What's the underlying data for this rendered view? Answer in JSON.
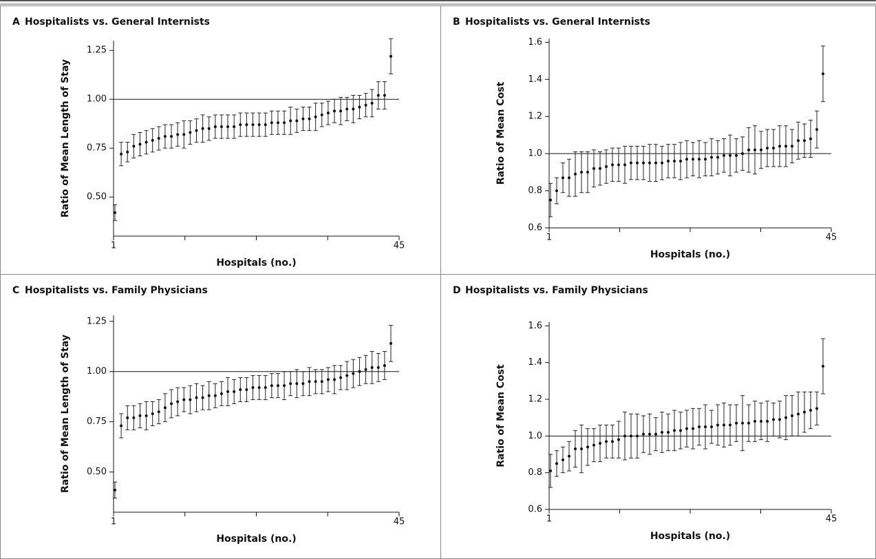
{
  "chart_data": [
    {
      "type": "errorbar",
      "label": "A",
      "title": "Hospitalists vs. General Internists",
      "xlabel": "Hospitals (no.)",
      "ylabel": "Ratio of Mean Length of Stay",
      "xlim": [
        1,
        45
      ],
      "xticks": [
        1,
        45
      ],
      "xminor_ticks": [
        12,
        23,
        34
      ],
      "ylim": [
        0.3,
        1.3
      ],
      "yticks": [
        {
          "value": 0.5,
          "label": "0.50"
        },
        {
          "value": 0.75,
          "label": "0.75"
        },
        {
          "value": 1.0,
          "label": "1.00"
        },
        {
          "value": 1.25,
          "label": "1.25"
        }
      ],
      "refline": 1,
      "values": [
        0.42,
        0.72,
        0.73,
        0.76,
        0.77,
        0.78,
        0.79,
        0.8,
        0.81,
        0.81,
        0.82,
        0.82,
        0.83,
        0.84,
        0.85,
        0.85,
        0.86,
        0.86,
        0.86,
        0.86,
        0.87,
        0.87,
        0.87,
        0.87,
        0.87,
        0.88,
        0.88,
        0.88,
        0.89,
        0.89,
        0.9,
        0.9,
        0.91,
        0.92,
        0.93,
        0.94,
        0.94,
        0.95,
        0.95,
        0.96,
        0.97,
        0.98,
        1.02,
        1.02,
        1.22
      ],
      "errors": [
        0.04,
        0.06,
        0.05,
        0.06,
        0.06,
        0.06,
        0.06,
        0.06,
        0.06,
        0.06,
        0.06,
        0.07,
        0.06,
        0.06,
        0.07,
        0.06,
        0.06,
        0.06,
        0.06,
        0.06,
        0.06,
        0.06,
        0.06,
        0.06,
        0.06,
        0.06,
        0.06,
        0.06,
        0.07,
        0.06,
        0.06,
        0.06,
        0.07,
        0.06,
        0.06,
        0.06,
        0.07,
        0.06,
        0.07,
        0.06,
        0.06,
        0.07,
        0.07,
        0.07,
        0.09
      ]
    },
    {
      "type": "errorbar",
      "label": "B",
      "title": "Hospitalists vs. General Internists",
      "xlabel": "Hospitals (no.)",
      "ylabel": "Ratio of Mean Cost",
      "xlim": [
        1,
        45
      ],
      "xticks": [
        1,
        45
      ],
      "xminor_ticks": [
        12,
        23,
        34
      ],
      "ylim": [
        0.6,
        1.62
      ],
      "yticks": [
        0.6,
        0.8,
        {
          "value": 1.0,
          "label": "1.0"
        },
        1.2,
        1.4,
        1.6
      ],
      "refline": 1,
      "values": [
        0.75,
        0.8,
        0.87,
        0.87,
        0.89,
        0.9,
        0.9,
        0.92,
        0.92,
        0.93,
        0.94,
        0.94,
        0.94,
        0.95,
        0.95,
        0.95,
        0.95,
        0.95,
        0.95,
        0.96,
        0.96,
        0.96,
        0.97,
        0.97,
        0.97,
        0.97,
        0.98,
        0.98,
        0.99,
        0.99,
        0.99,
        1.0,
        1.02,
        1.02,
        1.02,
        1.03,
        1.03,
        1.04,
        1.04,
        1.04,
        1.07,
        1.07,
        1.08,
        1.13,
        1.43
      ],
      "errors": [
        0.09,
        0.07,
        0.08,
        0.1,
        0.12,
        0.11,
        0.11,
        0.1,
        0.09,
        0.09,
        0.09,
        0.09,
        0.1,
        0.09,
        0.09,
        0.09,
        0.1,
        0.1,
        0.09,
        0.09,
        0.09,
        0.1,
        0.1,
        0.09,
        0.1,
        0.09,
        0.1,
        0.09,
        0.09,
        0.11,
        0.09,
        0.09,
        0.12,
        0.13,
        0.1,
        0.1,
        0.1,
        0.11,
        0.11,
        0.09,
        0.1,
        0.09,
        0.1,
        0.1,
        0.15
      ]
    },
    {
      "type": "errorbar",
      "label": "C",
      "title": "Hospitalists vs. Family Physicians",
      "xlabel": "Hospitals (no.)",
      "ylabel": "Ratio of Mean Length of Stay",
      "xlim": [
        1,
        45
      ],
      "xticks": [
        1,
        45
      ],
      "xminor_ticks": [
        12,
        23,
        34
      ],
      "ylim": [
        0.3,
        1.28
      ],
      "yticks": [
        {
          "value": 0.5,
          "label": "0.50"
        },
        {
          "value": 0.75,
          "label": "0.75"
        },
        {
          "value": 1.0,
          "label": "1.00"
        },
        {
          "value": 1.25,
          "label": "1.25"
        }
      ],
      "refline": 1,
      "values": [
        0.41,
        0.73,
        0.77,
        0.77,
        0.78,
        0.78,
        0.79,
        0.8,
        0.82,
        0.84,
        0.85,
        0.86,
        0.86,
        0.87,
        0.87,
        0.88,
        0.88,
        0.89,
        0.9,
        0.9,
        0.91,
        0.91,
        0.92,
        0.92,
        0.92,
        0.93,
        0.93,
        0.93,
        0.94,
        0.94,
        0.94,
        0.95,
        0.95,
        0.95,
        0.96,
        0.96,
        0.97,
        0.98,
        0.99,
        1.0,
        1.01,
        1.02,
        1.02,
        1.03,
        1.14
      ],
      "errors": [
        0.04,
        0.06,
        0.06,
        0.06,
        0.06,
        0.07,
        0.06,
        0.06,
        0.07,
        0.07,
        0.07,
        0.06,
        0.07,
        0.07,
        0.06,
        0.07,
        0.06,
        0.06,
        0.07,
        0.06,
        0.06,
        0.06,
        0.06,
        0.06,
        0.06,
        0.06,
        0.06,
        0.07,
        0.06,
        0.07,
        0.06,
        0.07,
        0.06,
        0.06,
        0.06,
        0.07,
        0.06,
        0.07,
        0.07,
        0.07,
        0.07,
        0.08,
        0.07,
        0.07,
        0.09
      ]
    },
    {
      "type": "errorbar",
      "label": "D",
      "title": "Hospitalists vs. Family Physicians",
      "xlabel": "Hospitals (no.)",
      "ylabel": "Ratio of Mean Cost",
      "xlim": [
        1,
        45
      ],
      "xticks": [
        1,
        45
      ],
      "xminor_ticks": [
        12,
        23,
        34
      ],
      "ylim": [
        0.6,
        1.62
      ],
      "yticks": [
        0.6,
        0.8,
        {
          "value": 1.0,
          "label": "1.0"
        },
        1.2,
        1.4,
        1.6
      ],
      "refline": 1,
      "values": [
        0.81,
        0.85,
        0.87,
        0.89,
        0.93,
        0.93,
        0.94,
        0.95,
        0.96,
        0.97,
        0.97,
        0.98,
        1.0,
        1.0,
        1.0,
        1.01,
        1.01,
        1.01,
        1.02,
        1.02,
        1.03,
        1.03,
        1.04,
        1.04,
        1.05,
        1.05,
        1.05,
        1.06,
        1.06,
        1.06,
        1.07,
        1.07,
        1.07,
        1.08,
        1.08,
        1.08,
        1.09,
        1.09,
        1.1,
        1.11,
        1.12,
        1.13,
        1.14,
        1.15,
        1.38
      ],
      "errors": [
        0.09,
        0.07,
        0.07,
        0.08,
        0.1,
        0.13,
        0.1,
        0.09,
        0.1,
        0.09,
        0.09,
        0.1,
        0.13,
        0.12,
        0.12,
        0.1,
        0.11,
        0.09,
        0.11,
        0.1,
        0.11,
        0.1,
        0.1,
        0.11,
        0.1,
        0.12,
        0.09,
        0.11,
        0.12,
        0.11,
        0.1,
        0.15,
        0.1,
        0.11,
        0.1,
        0.11,
        0.09,
        0.1,
        0.12,
        0.11,
        0.12,
        0.11,
        0.1,
        0.09,
        0.15
      ]
    }
  ]
}
